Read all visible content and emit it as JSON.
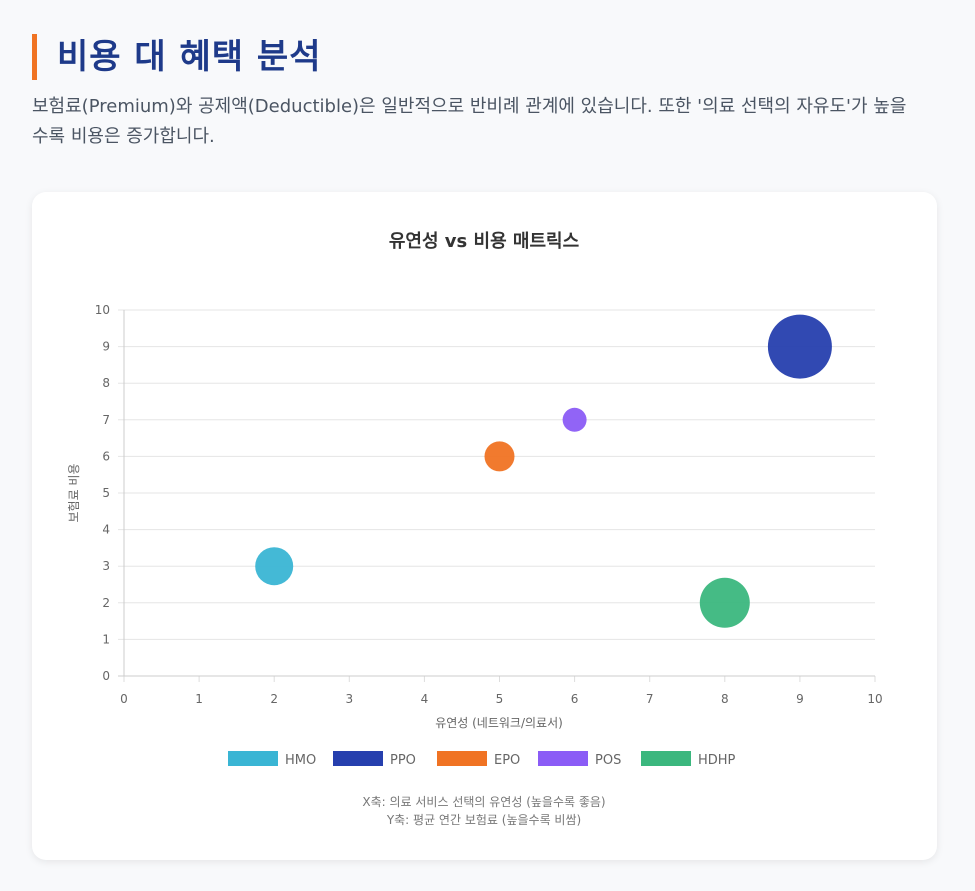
{
  "header": {
    "title": "비용 대 혜택 분석",
    "description": "보험료(Premium)와 공제액(Deductible)은 일반적으로 반비례 관계에 있습니다. 또한 '의료 선택의 자유도'가 높을수록 비용은 증가합니다."
  },
  "chart_data": {
    "type": "bubble",
    "title": "유연성 vs 비용 매트릭스",
    "xlabel": "유연성 (네트워크/의료서)",
    "ylabel": "보험료 비용",
    "xlim": [
      0,
      10
    ],
    "ylim": [
      0,
      10
    ],
    "xticks": [
      "0",
      "1",
      "2",
      "3",
      "4",
      "5",
      "6",
      "7",
      "8",
      "9",
      "10"
    ],
    "yticks": [
      "0",
      "1",
      "2",
      "3",
      "4",
      "5",
      "6",
      "7",
      "8",
      "9",
      "10"
    ],
    "grid": true,
    "legend_position": "bottom",
    "series": [
      {
        "name": "HMO",
        "x": 2,
        "y": 3,
        "r": 19,
        "color": "#3ab5d4"
      },
      {
        "name": "PPO",
        "x": 9,
        "y": 9,
        "r": 32,
        "color": "#263fae"
      },
      {
        "name": "EPO",
        "x": 5,
        "y": 6,
        "r": 15,
        "color": "#f07323"
      },
      {
        "name": "POS",
        "x": 6,
        "y": 7,
        "r": 12,
        "color": "#8b5cf6"
      },
      {
        "name": "HDHP",
        "x": 8,
        "y": 2,
        "r": 25,
        "color": "#3bb77e"
      }
    ],
    "notes": [
      "X축: 의료 서비스 선택의 유연성 (높을수록 좋음)",
      "Y축: 평균 연간 보험료 (높을수록 비쌈)"
    ]
  }
}
